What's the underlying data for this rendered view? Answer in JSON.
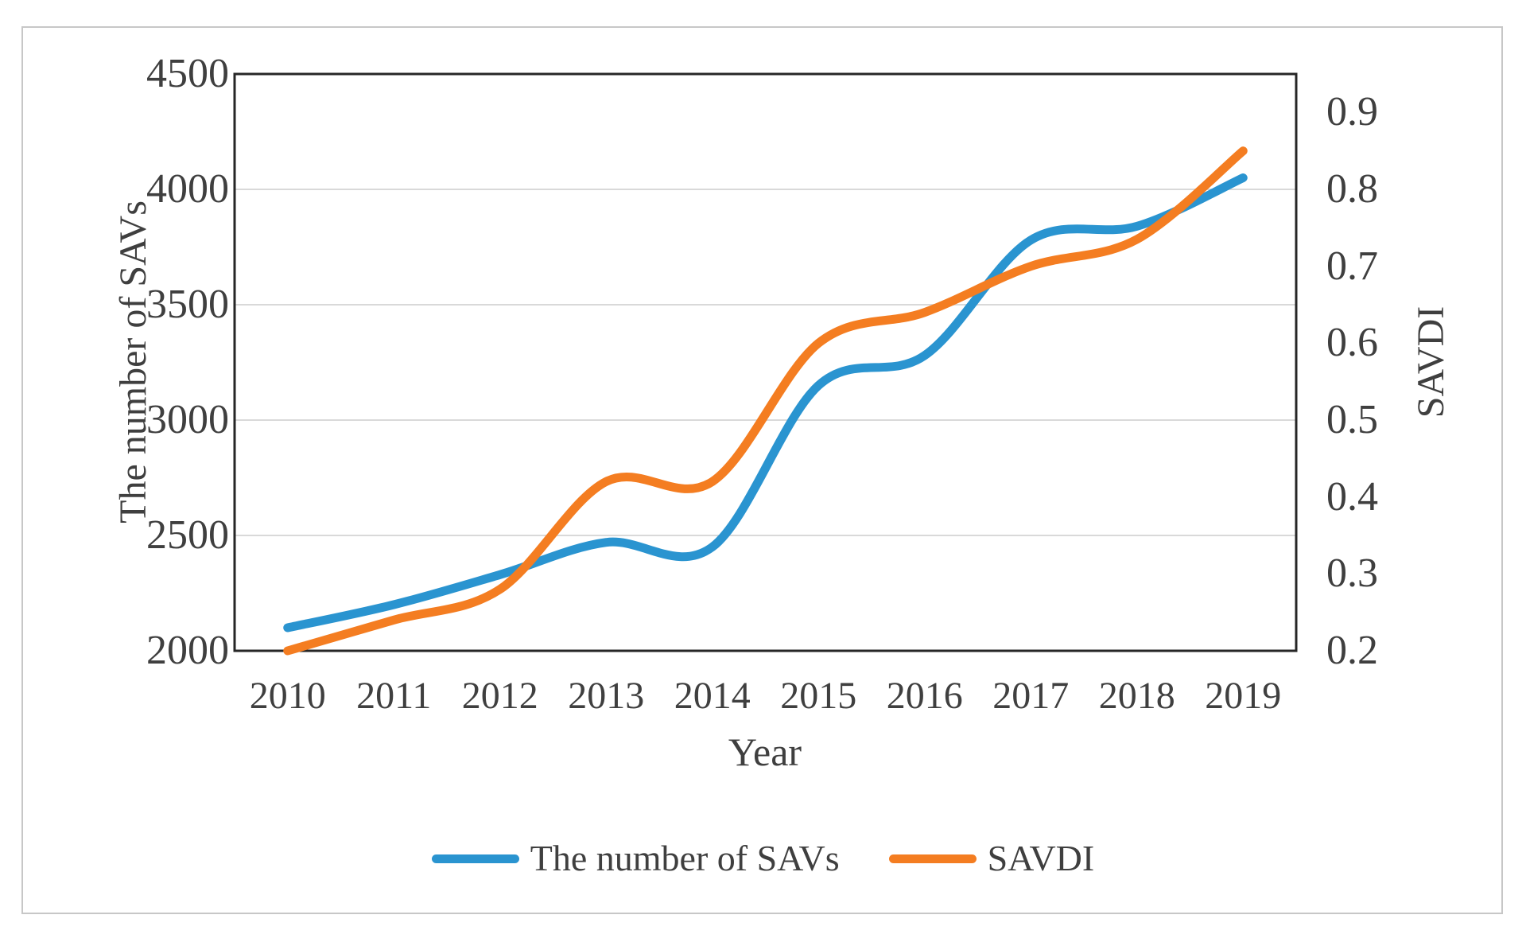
{
  "colors": {
    "series_blue": "#2A94D0",
    "series_orange": "#F47D21",
    "gridline": "#D9D9D9",
    "plot_border": "#262626",
    "text": "#3F3F3F",
    "frame_border": "#C7C7C7"
  },
  "chart_data": {
    "type": "line",
    "smooth": true,
    "grid": "horizontal",
    "x_axis": {
      "title": "Year",
      "categories": [
        "2010",
        "2011",
        "2012",
        "2013",
        "2014",
        "2015",
        "2016",
        "2017",
        "2018",
        "2019"
      ]
    },
    "left_axis": {
      "title": "The number of SAVs",
      "min": 2000,
      "max": 4500,
      "tick_values": [
        4500,
        4000,
        3500,
        3000,
        2500,
        2000
      ],
      "tick_labels": [
        "4500",
        "4000",
        "3500",
        "3000",
        "2500",
        "2000"
      ]
    },
    "right_axis": {
      "title": "SAVDI",
      "min": 0.2,
      "max": 0.95,
      "tick_values": [
        0.9,
        0.8,
        0.7,
        0.6,
        0.5,
        0.4,
        0.3,
        0.2
      ],
      "tick_labels": [
        "0.9",
        "0.8",
        "0.7",
        "0.6",
        "0.5",
        "0.4",
        "0.3",
        "0.2"
      ]
    },
    "series": [
      {
        "name": "The number of SAVs",
        "axis": "left",
        "color": "#2A94D0",
        "values": [
          2100,
          2200,
          2330,
          2470,
          2450,
          3150,
          3280,
          3780,
          3840,
          4050
        ]
      },
      {
        "name": "SAVDI",
        "axis": "right",
        "color": "#F47D21",
        "values": [
          0.2,
          0.24,
          0.28,
          0.42,
          0.42,
          0.6,
          0.64,
          0.7,
          0.735,
          0.85
        ]
      }
    ],
    "legend_position": "bottom"
  }
}
